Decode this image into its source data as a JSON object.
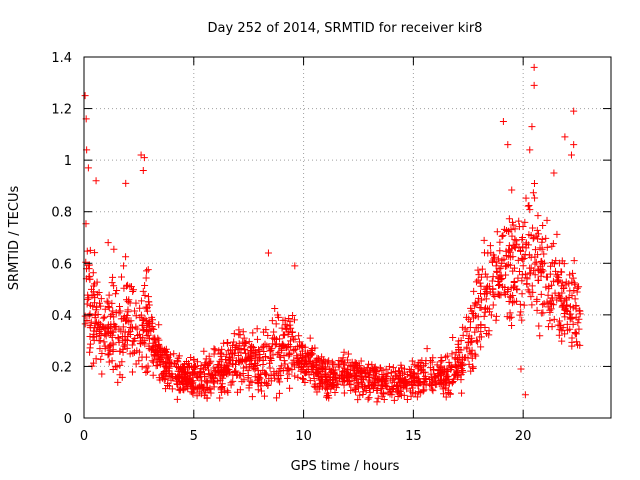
{
  "chart_data": {
    "type": "scatter",
    "title": "Day 252 of 2014, SRMTID for receiver kir8",
    "xlabel": "GPS time / hours",
    "ylabel": "SRMTID / TECUs",
    "xlim": [
      0,
      24
    ],
    "ylim": [
      0,
      1.4
    ],
    "x_ticks": [
      0,
      5,
      10,
      15,
      20
    ],
    "y_ticks": [
      0,
      0.2,
      0.4,
      0.6,
      0.8,
      1,
      1.2,
      1.4
    ],
    "x_tick_labels": [
      "0",
      "5",
      "10",
      "15",
      "20"
    ],
    "y_tick_labels": [
      "0",
      "0.2",
      "0.4",
      "0.6",
      "0.8",
      "1",
      "1.2",
      "1.4"
    ],
    "grid": true,
    "marker": "+",
    "color": "#ff0000",
    "profile": {
      "x": [
        0,
        0.3,
        0.6,
        1.0,
        1.5,
        2.0,
        2.5,
        2.8,
        3.2,
        3.6,
        4.0,
        5.0,
        6.0,
        7.0,
        8.0,
        9.0,
        9.5,
        10.0,
        11.0,
        12.0,
        13.0,
        14.0,
        15.0,
        15.5,
        16.0,
        16.5,
        17.0,
        17.5,
        18.0,
        19.0,
        20.0,
        20.5,
        21.0,
        21.5,
        22.0,
        22.5
      ],
      "median": [
        0.55,
        0.45,
        0.35,
        0.3,
        0.4,
        0.38,
        0.33,
        0.36,
        0.28,
        0.22,
        0.17,
        0.16,
        0.17,
        0.24,
        0.2,
        0.26,
        0.28,
        0.22,
        0.16,
        0.17,
        0.15,
        0.13,
        0.15,
        0.17,
        0.16,
        0.15,
        0.2,
        0.28,
        0.42,
        0.55,
        0.6,
        0.65,
        0.55,
        0.5,
        0.45,
        0.4
      ],
      "spread": [
        0.2,
        0.15,
        0.1,
        0.1,
        0.15,
        0.13,
        0.12,
        0.15,
        0.08,
        0.06,
        0.05,
        0.05,
        0.06,
        0.08,
        0.08,
        0.1,
        0.1,
        0.07,
        0.05,
        0.05,
        0.05,
        0.04,
        0.05,
        0.06,
        0.05,
        0.05,
        0.07,
        0.1,
        0.14,
        0.15,
        0.17,
        0.18,
        0.15,
        0.14,
        0.12,
        0.12
      ],
      "n_points": 2000,
      "x_start": 0.05,
      "x_end": 22.6
    },
    "notable_points": [
      {
        "x": 0.05,
        "y": 1.25
      },
      {
        "x": 0.1,
        "y": 1.16
      },
      {
        "x": 0.12,
        "y": 1.04
      },
      {
        "x": 0.2,
        "y": 0.97
      },
      {
        "x": 0.55,
        "y": 0.92
      },
      {
        "x": 1.1,
        "y": 0.68
      },
      {
        "x": 1.9,
        "y": 0.91
      },
      {
        "x": 2.6,
        "y": 1.02
      },
      {
        "x": 2.75,
        "y": 1.01
      },
      {
        "x": 2.7,
        "y": 0.96
      },
      {
        "x": 8.4,
        "y": 0.64
      },
      {
        "x": 9.6,
        "y": 0.59
      },
      {
        "x": 19.1,
        "y": 1.15
      },
      {
        "x": 19.3,
        "y": 1.06
      },
      {
        "x": 19.9,
        "y": 0.19
      },
      {
        "x": 20.1,
        "y": 0.09
      },
      {
        "x": 20.5,
        "y": 1.36
      },
      {
        "x": 20.5,
        "y": 1.29
      },
      {
        "x": 20.4,
        "y": 1.13
      },
      {
        "x": 20.3,
        "y": 1.04
      },
      {
        "x": 21.4,
        "y": 0.95
      },
      {
        "x": 21.9,
        "y": 1.09
      },
      {
        "x": 22.3,
        "y": 1.19
      },
      {
        "x": 22.3,
        "y": 1.06
      },
      {
        "x": 22.2,
        "y": 1.02
      }
    ]
  }
}
